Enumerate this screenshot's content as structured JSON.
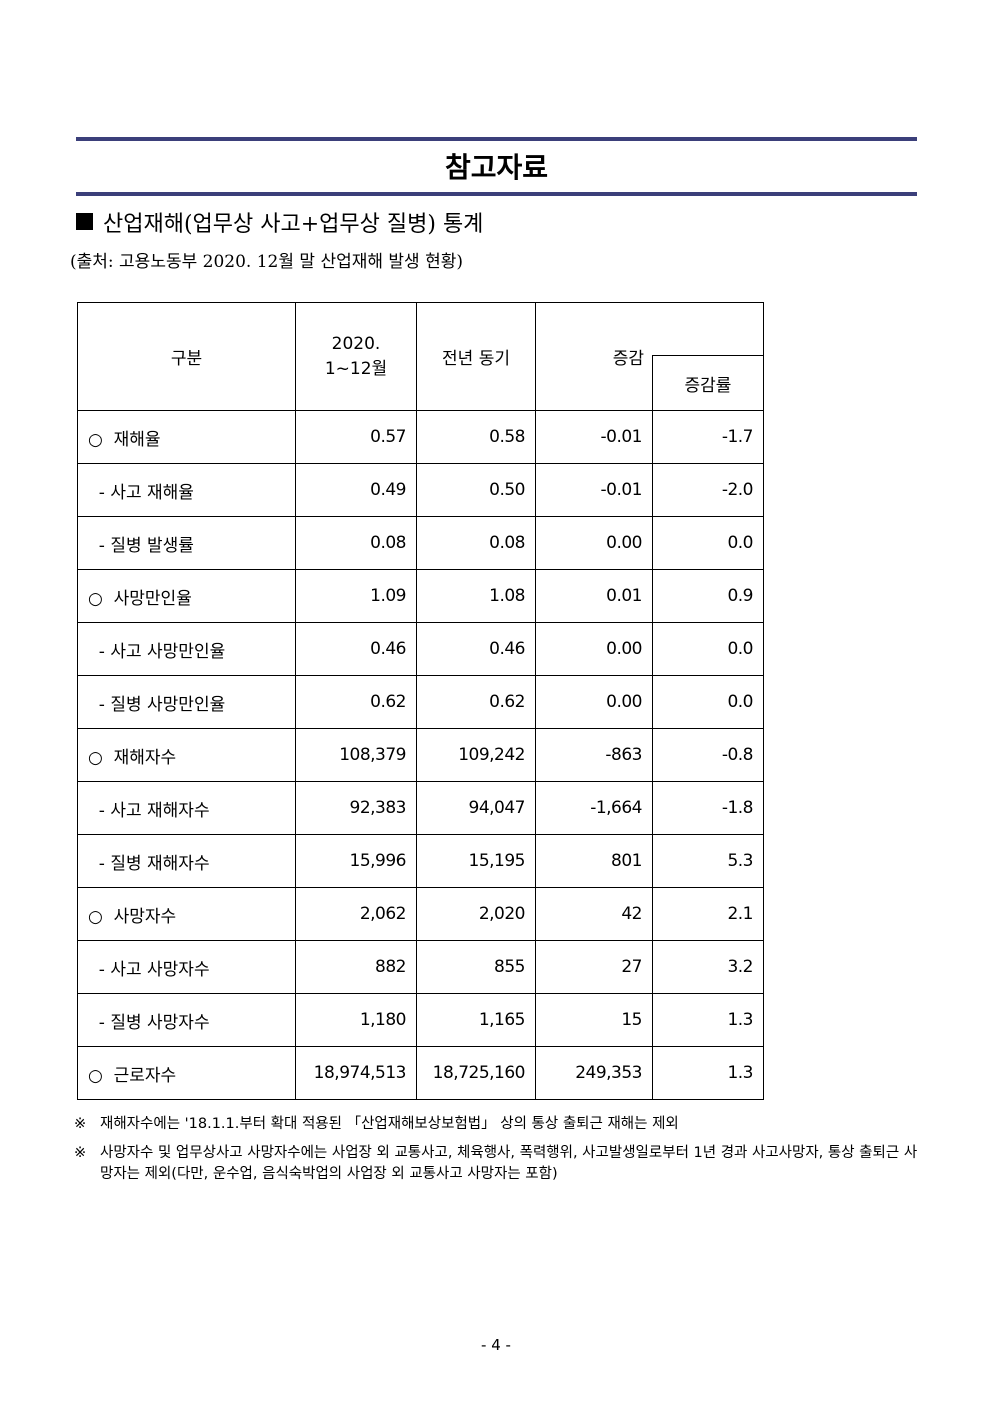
{
  "title": "참고자료",
  "section_title": "산업재해(업무상 사고+업무상 질병) 통계",
  "source": "(출처: 고용노동부 2020. 12월 말 산업재해 발생 현황)",
  "table": {
    "headers": {
      "category": "구분",
      "current_line1": "2020.",
      "current_line2": "1~12월",
      "previous": "전년 동기",
      "change": "증감",
      "change_rate": "증감률"
    },
    "rows": [
      {
        "label": "○  재해율",
        "current": "0.57",
        "previous": "0.58",
        "change": "-0.01",
        "rate": "-1.7"
      },
      {
        "label": "  - 사고 재해율",
        "current": "0.49",
        "previous": "0.50",
        "change": "-0.01",
        "rate": "-2.0"
      },
      {
        "label": "  - 질병 발생률",
        "current": "0.08",
        "previous": "0.08",
        "change": "0.00",
        "rate": "0.0"
      },
      {
        "label": "○  사망만인율",
        "current": "1.09",
        "previous": "1.08",
        "change": "0.01",
        "rate": "0.9"
      },
      {
        "label": "  - 사고 사망만인율",
        "current": "0.46",
        "previous": "0.46",
        "change": "0.00",
        "rate": "0.0"
      },
      {
        "label": "  - 질병 사망만인율",
        "current": "0.62",
        "previous": "0.62",
        "change": "0.00",
        "rate": "0.0"
      },
      {
        "label": "○  재해자수",
        "current": "108,379",
        "previous": "109,242",
        "change": "-863",
        "rate": "-0.8"
      },
      {
        "label": "  - 사고 재해자수",
        "current": "92,383",
        "previous": "94,047",
        "change": "-1,664",
        "rate": "-1.8"
      },
      {
        "label": "  - 질병 재해자수",
        "current": "15,996",
        "previous": "15,195",
        "change": "801",
        "rate": "5.3"
      },
      {
        "label": "○  사망자수",
        "current": "2,062",
        "previous": "2,020",
        "change": "42",
        "rate": "2.1"
      },
      {
        "label": "  - 사고 사망자수",
        "current": "882",
        "previous": "855",
        "change": "27",
        "rate": "3.2"
      },
      {
        "label": "  - 질병 사망자수",
        "current": "1,180",
        "previous": "1,165",
        "change": "15",
        "rate": "1.3"
      },
      {
        "label": "○  근로자수",
        "current": "18,974,513",
        "previous": "18,725,160",
        "change": "249,353",
        "rate": "1.3"
      }
    ]
  },
  "notes": [
    {
      "mark": "※",
      "text": "재해자수에는 '18.1.1.부터 확대 적용된 「산업재해보상보험법」 상의 통상 출퇴근 재해는 제외"
    },
    {
      "mark": "※",
      "text": "사망자수 및 업무상사고 사망자수에는 사업장 외 교통사고, 체육행사, 폭력행위, 사고발생일로부터 1년 경과 사고사망자, 통상 출퇴근 사망자는 제외(다만, 운수업, 음식숙박업의 사업장 외 교통사고 사망자는 포함)"
    }
  ],
  "page_number": "- 4 -",
  "colors": {
    "rule": "#3b3f7a"
  }
}
